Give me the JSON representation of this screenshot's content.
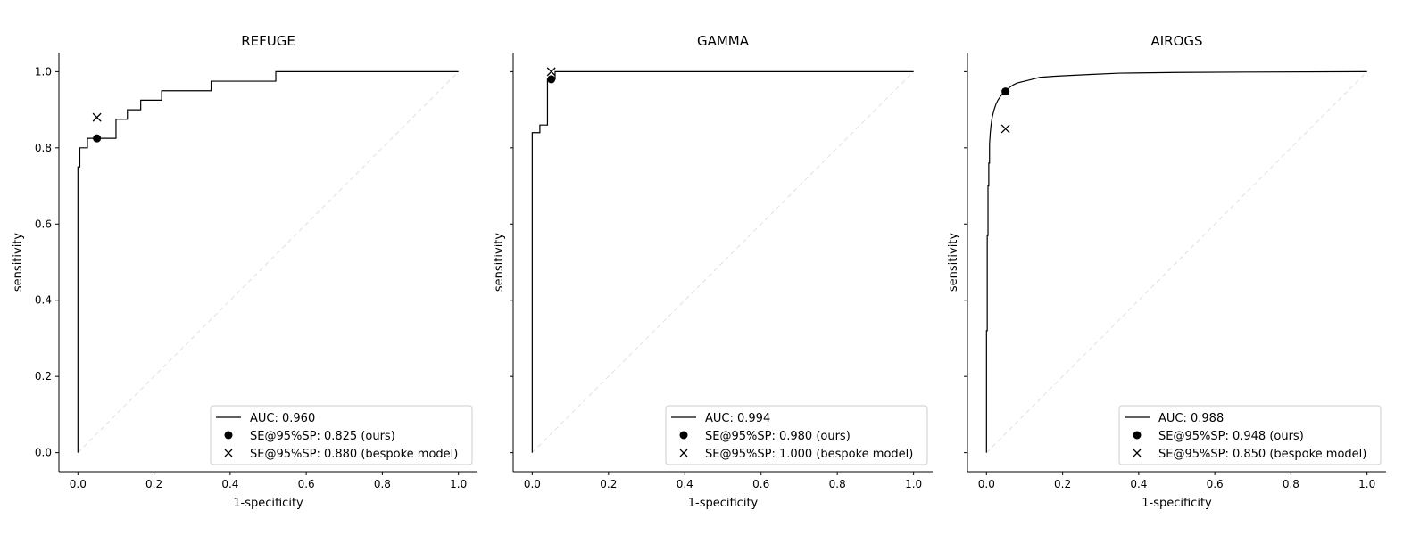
{
  "chart_data": [
    {
      "type": "line",
      "title": "REFUGE",
      "xlabel": "1-specificity",
      "ylabel": "sensitivity",
      "xlim": [
        -0.05,
        1.05
      ],
      "ylim": [
        -0.05,
        1.05
      ],
      "xticks": [
        0.0,
        0.2,
        0.4,
        0.6,
        0.8,
        1.0
      ],
      "yticks": [
        0.0,
        0.2,
        0.4,
        0.6,
        0.8,
        1.0
      ],
      "grid": false,
      "legend_position": "lower-right",
      "roc_curve": {
        "x": [
          0,
          0,
          0.005,
          0.005,
          0.025,
          0.025,
          0.05,
          0.05,
          0.1,
          0.1,
          0.13,
          0.13,
          0.165,
          0.165,
          0.22,
          0.22,
          0.35,
          0.35,
          0.52,
          0.52,
          1.0
        ],
        "y": [
          0,
          0.75,
          0.75,
          0.8,
          0.8,
          0.825,
          0.825,
          0.825,
          0.825,
          0.875,
          0.875,
          0.9,
          0.9,
          0.925,
          0.925,
          0.95,
          0.95,
          0.975,
          0.975,
          1.0,
          1.0
        ]
      },
      "ours_point": {
        "x": 0.05,
        "y": 0.825
      },
      "bespoke_point": {
        "x": 0.05,
        "y": 0.88
      },
      "legend": [
        "AUC: 0.960",
        "SE@95%SP: 0.825 (ours)",
        "SE@95%SP: 0.880 (bespoke model)"
      ],
      "show_ylabels": true
    },
    {
      "type": "line",
      "title": "GAMMA",
      "xlabel": "1-specificity",
      "ylabel": "sensitivity",
      "xlim": [
        -0.05,
        1.05
      ],
      "ylim": [
        -0.05,
        1.05
      ],
      "xticks": [
        0.0,
        0.2,
        0.4,
        0.6,
        0.8,
        1.0
      ],
      "yticks": [
        0.0,
        0.2,
        0.4,
        0.6,
        0.8,
        1.0
      ],
      "grid": false,
      "legend_position": "lower-right",
      "roc_curve": {
        "x": [
          0,
          0,
          0.02,
          0.02,
          0.04,
          0.04,
          0.05,
          0.05,
          0.06,
          0.06,
          1.0
        ],
        "y": [
          0,
          0.84,
          0.84,
          0.86,
          0.86,
          0.98,
          0.98,
          0.98,
          0.98,
          1.0,
          1.0
        ]
      },
      "ours_point": {
        "x": 0.05,
        "y": 0.98
      },
      "bespoke_point": {
        "x": 0.05,
        "y": 1.0
      },
      "legend": [
        "AUC: 0.994",
        "SE@95%SP: 0.980 (ours)",
        "SE@95%SP: 1.000 (bespoke model)"
      ],
      "show_ylabels": false
    },
    {
      "type": "line",
      "title": "AIROGS",
      "xlabel": "1-specificity",
      "ylabel": "sensitivity",
      "xlim": [
        -0.05,
        1.05
      ],
      "ylim": [
        -0.05,
        1.05
      ],
      "xticks": [
        0.0,
        0.2,
        0.4,
        0.6,
        0.8,
        1.0
      ],
      "yticks": [
        0.0,
        0.2,
        0.4,
        0.6,
        0.8,
        1.0
      ],
      "grid": false,
      "legend_position": "lower-right",
      "roc_curve": {
        "x": [
          0,
          0,
          0.002,
          0.002,
          0.004,
          0.004,
          0.006,
          0.006,
          0.008,
          0.008,
          0.01,
          0.012,
          0.015,
          0.02,
          0.025,
          0.03,
          0.04,
          0.05,
          0.06,
          0.07,
          0.08,
          0.1,
          0.12,
          0.14,
          0.18,
          0.22,
          0.28,
          0.35,
          0.5,
          0.7,
          1.0
        ],
        "y": [
          0,
          0.32,
          0.32,
          0.57,
          0.57,
          0.7,
          0.7,
          0.76,
          0.76,
          0.81,
          0.84,
          0.86,
          0.88,
          0.9,
          0.915,
          0.925,
          0.94,
          0.948,
          0.958,
          0.965,
          0.97,
          0.975,
          0.98,
          0.985,
          0.988,
          0.99,
          0.993,
          0.996,
          0.998,
          0.999,
          1.0
        ]
      },
      "ours_point": {
        "x": 0.05,
        "y": 0.948
      },
      "bespoke_point": {
        "x": 0.05,
        "y": 0.85
      },
      "legend": [
        "AUC: 0.988",
        "SE@95%SP: 0.948 (ours)",
        "SE@95%SP: 0.850 (bespoke model)"
      ],
      "show_ylabels": false
    }
  ]
}
